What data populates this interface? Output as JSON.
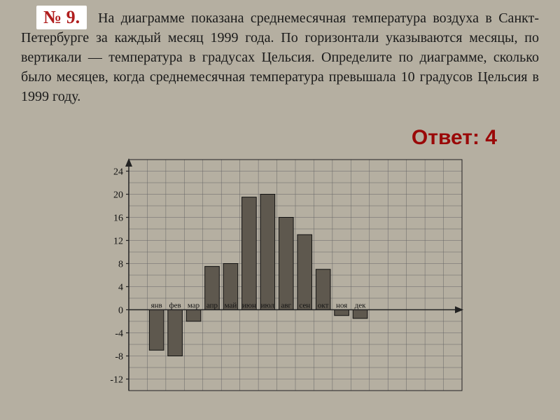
{
  "problem_number": "№ 9.",
  "problem_text": "На диаграмме показана среднемесячная температура воздуха в Санкт-Петербурге за каждый месяц 1999 года. По горизонтали указываются месяцы, по вертикали — температура в градусах Цельсия. Определите по диаграмме, сколько было месяцев, когда среднемесячная температура превышала 10 градусов Цельсия в 1999 году.",
  "answer_label": "Ответ: 4",
  "chart": {
    "type": "bar",
    "background_color": "#b5afa1",
    "grid_color": "#666666",
    "axis_color": "#222222",
    "bar_fill": "#5e584e",
    "bar_stroke": "#111111",
    "ylim": [
      -14,
      26
    ],
    "ytick_step": 4,
    "ytick_labels": [
      -12,
      -8,
      -4,
      0,
      4,
      8,
      12,
      16,
      20,
      24
    ],
    "y_minor_step": 2,
    "label_fontsize": 14,
    "month_fontsize": 11,
    "bar_width": 0.78,
    "grid_cols": 18,
    "months": [
      "янв",
      "фев",
      "мар",
      "апр",
      "май",
      "июн",
      "июл",
      "авг",
      "сен",
      "окт",
      "ноя",
      "дек"
    ],
    "values": [
      -7,
      -8,
      -2,
      7.5,
      8,
      19.5,
      20,
      16,
      13,
      7,
      -1,
      -1.5
    ]
  }
}
